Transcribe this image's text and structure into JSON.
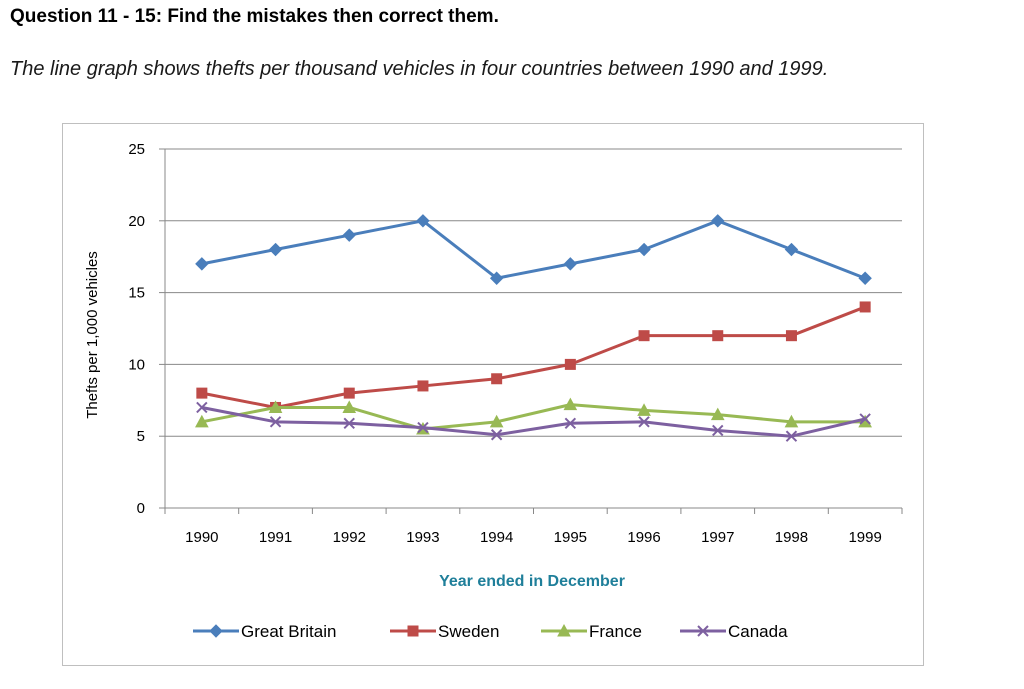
{
  "page": {
    "heading": "Question 11 - 15: Find the mistakes then correct them.",
    "subheading": "The line graph shows thefts per thousand vehicles in four countries between 1990 and 1999."
  },
  "colors": {
    "great_britain": "#4a7ebb",
    "sweden": "#be4b48",
    "france": "#98b954",
    "canada": "#7d60a0",
    "x_title": "#1f7f9a",
    "grid": "#888888"
  },
  "chart_data": {
    "type": "line",
    "xlabel": "Year ended in December",
    "ylabel": "Thefts per 1,000 vehicles",
    "categories": [
      "1990",
      "1991",
      "1992",
      "1993",
      "1994",
      "1995",
      "1996",
      "1997",
      "1998",
      "1999"
    ],
    "ylim": [
      0,
      25
    ],
    "yticks": [
      "0",
      "5",
      "10",
      "15",
      "20",
      "25"
    ],
    "grid": true,
    "legend_position": "bottom",
    "series": [
      {
        "name": "Great Britain",
        "marker": "diamond",
        "values": [
          17,
          18,
          19,
          20,
          16,
          17,
          18,
          20,
          18,
          16
        ]
      },
      {
        "name": "Sweden",
        "marker": "square",
        "values": [
          8,
          7,
          8,
          8.5,
          9,
          10,
          12,
          12,
          12,
          14
        ]
      },
      {
        "name": "France",
        "marker": "triangle",
        "values": [
          6,
          7,
          7,
          5.5,
          6,
          7.2,
          6.8,
          6.5,
          6,
          6
        ]
      },
      {
        "name": "Canada",
        "marker": "x",
        "values": [
          7,
          6,
          5.9,
          5.6,
          5.1,
          5.9,
          6,
          5.4,
          5,
          6.2
        ]
      }
    ]
  }
}
